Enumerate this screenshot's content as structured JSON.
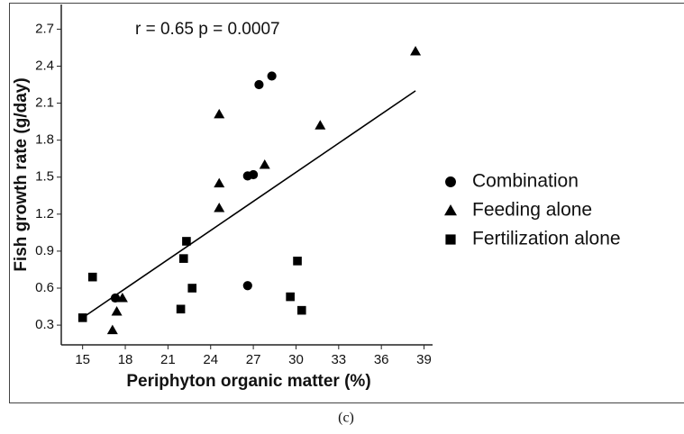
{
  "chart_data": {
    "type": "scatter",
    "annotation": "r = 0.65   p = 0.0007",
    "caption": "(c)",
    "x_label": "Periphyton organic matter (%)",
    "y_label": "Fish growth rate (g/day)",
    "xlim": [
      13.5,
      39.6
    ],
    "ylim": [
      0.14,
      2.9
    ],
    "xticks": [
      15,
      18,
      21,
      24,
      27,
      30,
      33,
      36,
      39
    ],
    "yticks": [
      0.3,
      0.6,
      0.9,
      1.2,
      1.5,
      1.8,
      2.1,
      2.4,
      2.7
    ],
    "series": [
      {
        "name": "Combination",
        "marker": "circle",
        "color": "#000000",
        "x": [
          17.3,
          26.6,
          26.6,
          27.0,
          27.4,
          28.3
        ],
        "values": [
          0.52,
          0.62,
          1.51,
          1.52,
          2.25,
          2.32
        ]
      },
      {
        "name": "Feeding alone",
        "marker": "triangle",
        "color": "#000000",
        "x": [
          17.1,
          17.4,
          17.8,
          24.6,
          24.6,
          24.6,
          27.8,
          31.7,
          38.4
        ],
        "values": [
          0.26,
          0.41,
          0.52,
          1.25,
          1.45,
          2.01,
          1.6,
          1.92,
          2.52
        ]
      },
      {
        "name": "Fertilization alone",
        "marker": "square",
        "color": "#000000",
        "x": [
          15.0,
          15.7,
          21.9,
          22.1,
          22.3,
          22.7,
          29.6,
          30.1,
          30.4
        ],
        "values": [
          0.36,
          0.69,
          0.43,
          0.84,
          0.98,
          0.6,
          0.53,
          0.82,
          0.42
        ]
      }
    ],
    "fit": {
      "x": [
        15,
        38.4
      ],
      "values": [
        0.36,
        2.2
      ]
    }
  }
}
